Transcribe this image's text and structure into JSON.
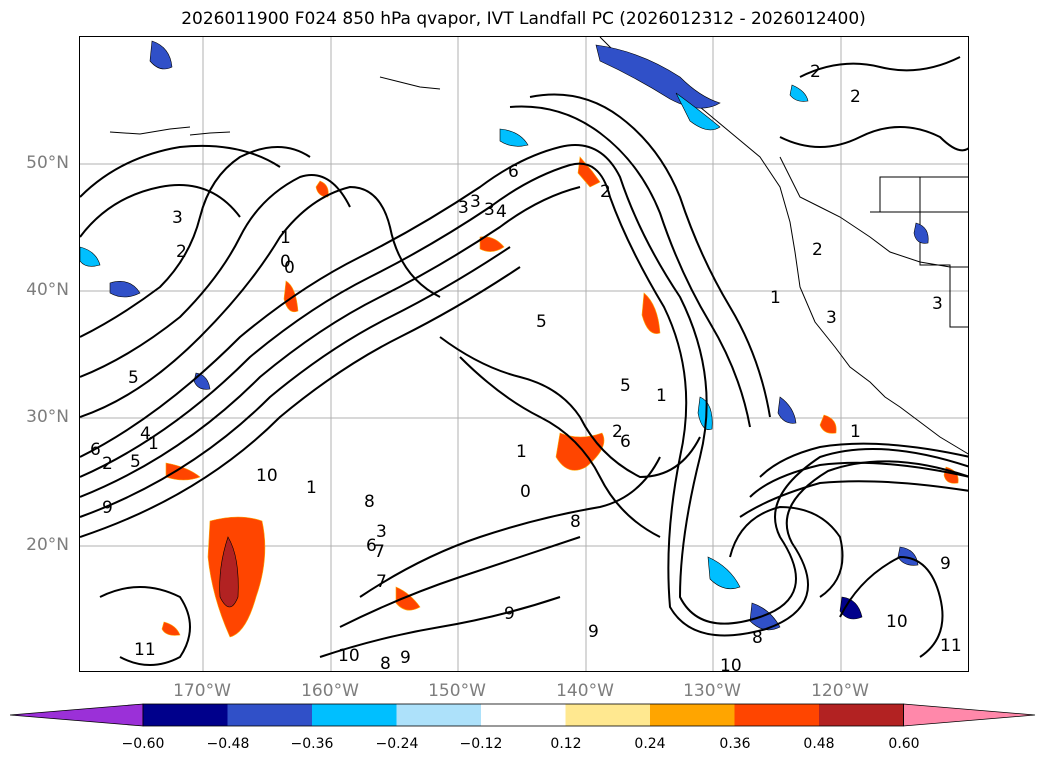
{
  "title": "2026011900 F024 850 hPa qvapor, IVT Landfall PC (2026012312 - 2026012400)",
  "lat_labels": [
    "50°N",
    "40°N",
    "30°N",
    "20°N"
  ],
  "lon_labels": [
    "170°W",
    "160°W",
    "150°W",
    "140°W",
    "130°W",
    "120°W"
  ],
  "colorbar": {
    "tick_labels": [
      "−0.60",
      "−0.48",
      "−0.36",
      "−0.24",
      "−0.12",
      "0.12",
      "0.24",
      "0.36",
      "0.48",
      "0.60"
    ],
    "colors": [
      "#9b30d8",
      "#00008b",
      "#3050c8",
      "#00bfff",
      "#ade1fa",
      "#ffffff",
      "#ffe890",
      "#ffa500",
      "#ff4500",
      "#b22222",
      "#ff88aa"
    ],
    "extend": "both"
  },
  "contour_labels": [
    "2",
    "2",
    "3",
    "3",
    "2",
    "1",
    "6",
    "3",
    "4",
    "5",
    "5",
    "0",
    "2",
    "5",
    "1",
    "6",
    "5",
    "4",
    "6",
    "7",
    "3",
    "1",
    "6",
    "8",
    "9",
    "10",
    "11",
    "7",
    "1",
    "0",
    "8",
    "10",
    "9",
    "9",
    "9",
    "8",
    "10",
    "10",
    "11",
    "8",
    "9",
    "2",
    "2",
    "1",
    "1",
    "3",
    "1",
    "2",
    "3",
    "3",
    "0"
  ]
}
